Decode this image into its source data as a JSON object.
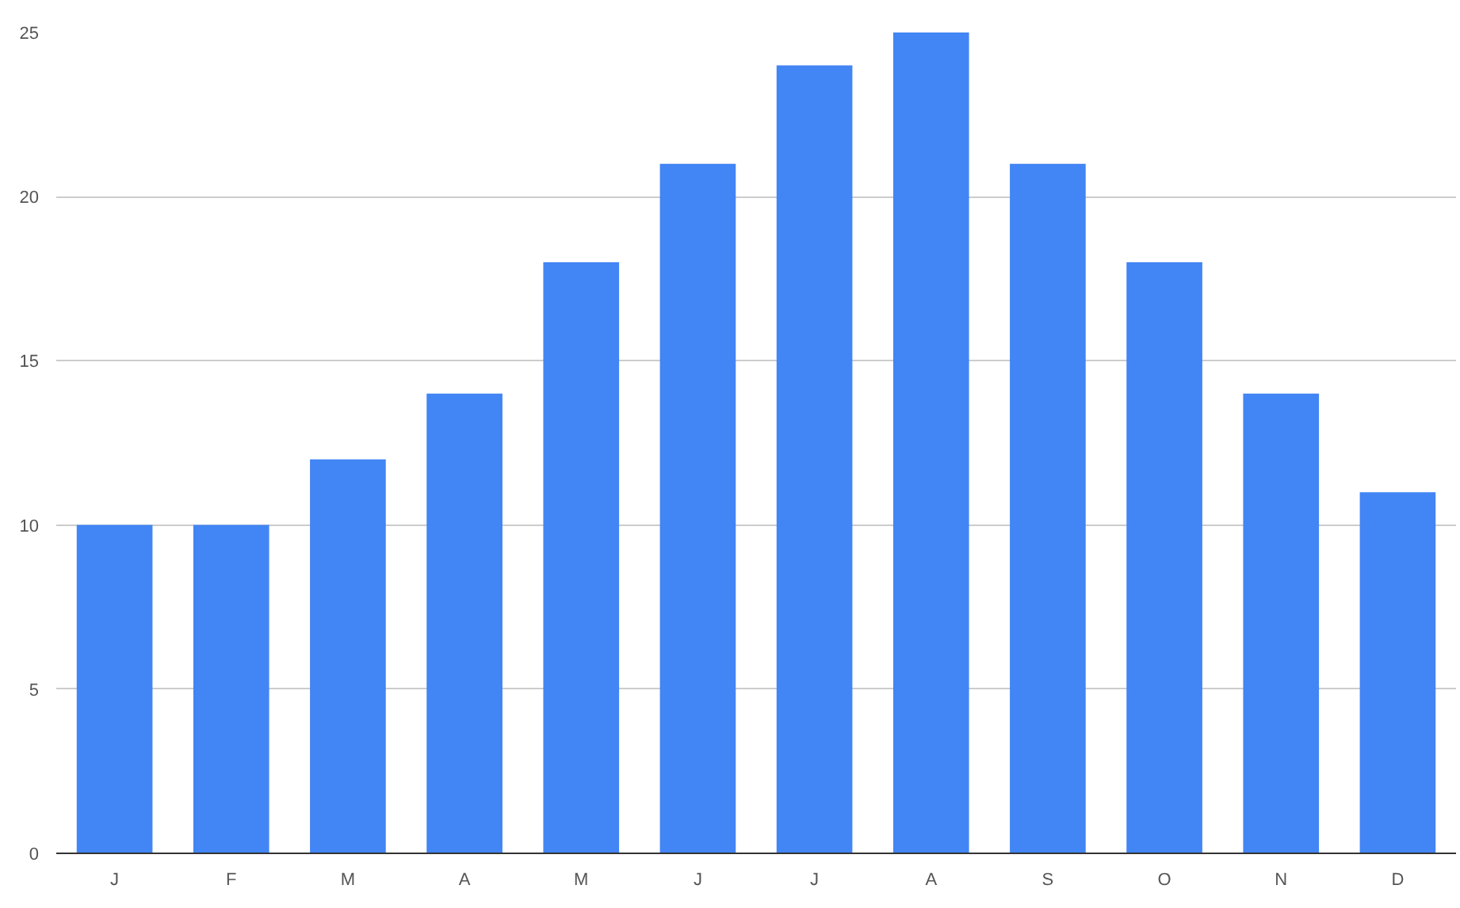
{
  "chart_data": {
    "type": "bar",
    "categories": [
      "J",
      "F",
      "M",
      "A",
      "M",
      "J",
      "J",
      "A",
      "S",
      "O",
      "N",
      "D"
    ],
    "values": [
      10,
      10,
      12,
      14,
      18,
      21,
      24,
      25,
      21,
      18,
      14,
      11
    ],
    "color": "#4285f4",
    "ylim": [
      0,
      25
    ],
    "yticks": [
      0,
      5,
      10,
      15,
      20,
      25
    ],
    "grid": "y"
  }
}
